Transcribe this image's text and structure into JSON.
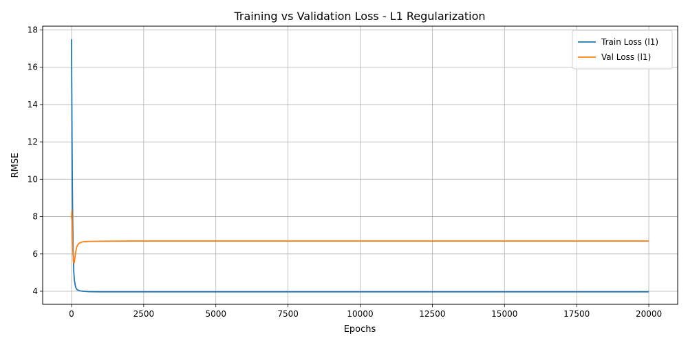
{
  "chart_data": {
    "type": "line",
    "title": "Training vs Validation Loss - L1 Regularization",
    "xlabel": "Epochs",
    "ylabel": "RMSE",
    "xlim": [
      -1000,
      21000
    ],
    "ylim": [
      3.3,
      18.2
    ],
    "xticks": [
      0,
      2500,
      5000,
      7500,
      10000,
      12500,
      15000,
      17500,
      20000
    ],
    "yticks": [
      4,
      6,
      8,
      10,
      12,
      14,
      16,
      18
    ],
    "grid": true,
    "legend_position": "top-right",
    "series": [
      {
        "name": "Train Loss (l1)",
        "color": "#1f77b4",
        "x": [
          0,
          10,
          20,
          30,
          40,
          60,
          80,
          100,
          130,
          160,
          200,
          300,
          400,
          600,
          1000,
          2000,
          5000,
          10000,
          15000,
          20000
        ],
        "y": [
          17.5,
          14.5,
          11.8,
          9.6,
          7.9,
          5.9,
          5.0,
          4.6,
          4.3,
          4.15,
          4.08,
          4.02,
          4.0,
          3.98,
          3.97,
          3.97,
          3.97,
          3.97,
          3.97,
          3.97
        ]
      },
      {
        "name": "Val Loss (l1)",
        "color": "#ff7f0e",
        "x": [
          0,
          10,
          20,
          30,
          50,
          70,
          90,
          110,
          140,
          170,
          200,
          250,
          300,
          400,
          600,
          1000,
          2000,
          5000,
          10000,
          15000,
          20000
        ],
        "y": [
          7.9,
          8.3,
          7.8,
          7.0,
          6.0,
          5.55,
          5.5,
          5.7,
          6.05,
          6.3,
          6.45,
          6.55,
          6.6,
          6.65,
          6.67,
          6.68,
          6.69,
          6.69,
          6.69,
          6.69,
          6.69
        ]
      }
    ]
  }
}
